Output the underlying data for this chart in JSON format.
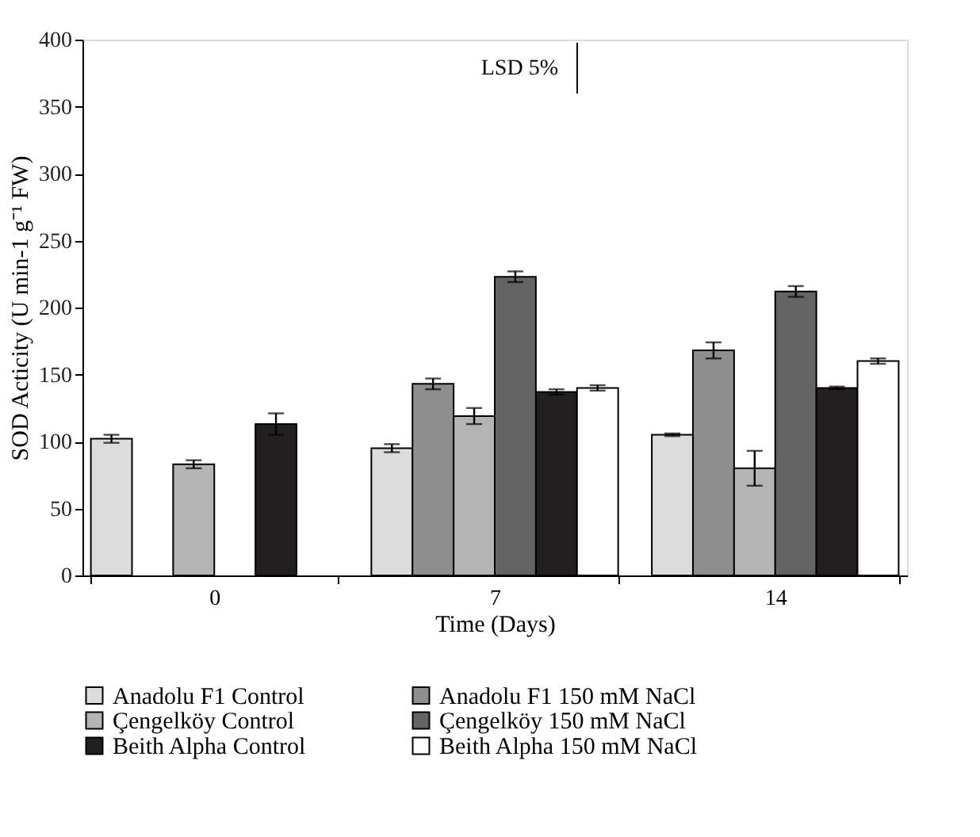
{
  "chart_data": {
    "type": "bar",
    "categories": [
      "0",
      "7",
      "14"
    ],
    "xlabel": "Time (Days)",
    "ylabel": "SOD Acticity (U min-1 g⁻¹ FW)",
    "ylim": [
      0,
      400
    ],
    "yticks": [
      0,
      50,
      100,
      150,
      200,
      250,
      300,
      350,
      400
    ],
    "grid": false,
    "legend": "bottom",
    "annotations": [
      "LSD 5%"
    ],
    "series": [
      {
        "name": "Anadolu F1 Control",
        "color": "#dcdcdc",
        "values": [
          102,
          95,
          105
        ],
        "errors": [
          3,
          3,
          1
        ]
      },
      {
        "name": "Anadolu F1 150 mM NaCl",
        "color": "#8e8e8e",
        "values": [
          null,
          143,
          168
        ],
        "errors": [
          null,
          4,
          6
        ]
      },
      {
        "name": "Çengelköy  Control",
        "color": "#b4b4b4",
        "values": [
          83,
          119,
          80
        ],
        "errors": [
          3,
          6,
          13
        ]
      },
      {
        "name": "Çengelköy 150 mM NaCl",
        "color": "#646464",
        "values": [
          null,
          223,
          212
        ],
        "errors": [
          null,
          4,
          4
        ]
      },
      {
        "name": "Beith  Alpha Control",
        "color": "#231f20",
        "values": [
          113,
          137,
          140
        ],
        "errors": [
          8,
          2,
          1
        ]
      },
      {
        "name": "Beith Alpha 150 mM NaCl",
        "color": "#ffffff",
        "values": [
          null,
          140,
          160
        ],
        "errors": [
          null,
          2,
          2
        ]
      }
    ]
  }
}
